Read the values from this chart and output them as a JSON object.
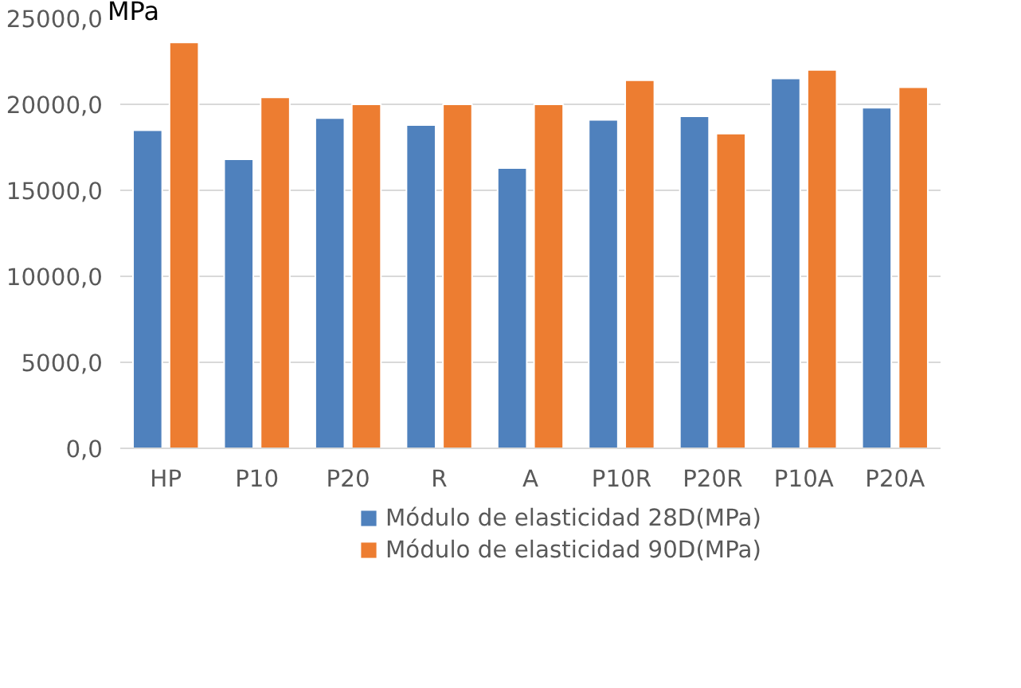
{
  "chart_data": {
    "type": "bar",
    "ylabel": "MPa",
    "categories": [
      "HP",
      "P10",
      "P20",
      "R",
      "A",
      "P10R",
      "P20R",
      "P10A",
      "P20A"
    ],
    "series": [
      {
        "name": "Módulo de elasticidad 28D(MPa)",
        "color": "#4f81bd",
        "values": [
          18500,
          16800,
          19200,
          18800,
          16300,
          19100,
          19300,
          21500,
          19800
        ]
      },
      {
        "name": "Módulo de elasticidad 90D(MPa)",
        "color": "#ed7d31",
        "values": [
          23600,
          20400,
          20000,
          20000,
          20000,
          21400,
          18300,
          22000,
          21000
        ]
      }
    ],
    "ylim": [
      0,
      25000
    ],
    "yticks": [
      {
        "value": 0,
        "label": "0,0"
      },
      {
        "value": 5000,
        "label": "5000,0"
      },
      {
        "value": 10000,
        "label": "10000,0"
      },
      {
        "value": 15000,
        "label": "15000,0"
      },
      {
        "value": 20000,
        "label": "20000,0"
      },
      {
        "value": 25000,
        "label": "25000,0"
      }
    ],
    "grid": "y",
    "legend": "bottom"
  }
}
